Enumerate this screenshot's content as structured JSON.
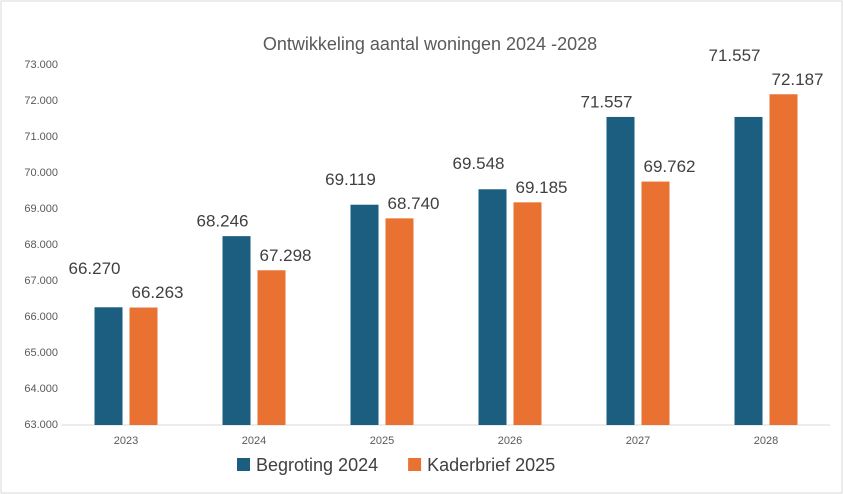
{
  "chart_data": {
    "type": "bar",
    "title": "Ontwikkeling aantal woningen 2024 -2028",
    "categories": [
      "2023",
      "2024",
      "2025",
      "2026",
      "2027",
      "2028"
    ],
    "series": [
      {
        "name": "Begroting 2024",
        "color": "#1b5e7f",
        "values": [
          66270,
          68246,
          69119,
          69548,
          71557,
          71557
        ],
        "value_labels": [
          "66.270",
          "68.246",
          "69.119",
          "69.548",
          "71.557",
          "71.557"
        ]
      },
      {
        "name": "Kaderbrief 2025",
        "color": "#e97132",
        "values": [
          66263,
          67298,
          68740,
          69185,
          69762,
          72187
        ],
        "value_labels": [
          "66.263",
          "67.298",
          "68.740",
          "69.185",
          "69.762",
          "72.187"
        ]
      }
    ],
    "ylim": [
      63000,
      73000
    ],
    "yticks": [
      {
        "value": 63000,
        "label": "63.000"
      },
      {
        "value": 64000,
        "label": "64.000"
      },
      {
        "value": 65000,
        "label": "65.000"
      },
      {
        "value": 66000,
        "label": "66.000"
      },
      {
        "value": 67000,
        "label": "67.000"
      },
      {
        "value": 68000,
        "label": "68.000"
      },
      {
        "value": 69000,
        "label": "69.000"
      },
      {
        "value": 70000,
        "label": "70.000"
      },
      {
        "value": 71000,
        "label": "71.000"
      },
      {
        "value": 72000,
        "label": "72.000"
      },
      {
        "value": 73000,
        "label": "73.000"
      }
    ],
    "grid": false,
    "legend": "bottom"
  }
}
